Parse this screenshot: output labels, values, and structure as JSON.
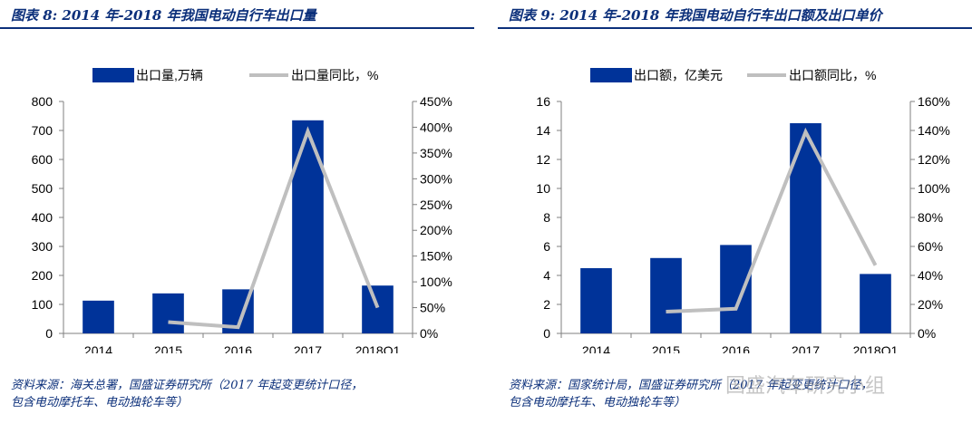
{
  "charts": [
    {
      "title": "图表 8: 2014 年-2018 年我国电动自行车出口量",
      "source": [
        "资料来源：海关总署，国盛证券研究所（2017 年起变更统计口径，",
        "包含电动摩托车、电动独轮车等）"
      ]
    },
    {
      "title": "图表 9: 2014 年-2018 年我国电动自行车出口额及出口单价",
      "source": [
        "资料来源：国家统计局，国盛证券研究所（2017 年起变更统计口径，",
        "包含电动摩托车、电动独轮车等）"
      ]
    }
  ],
  "watermark": "国盛汽车研究小组",
  "colors": {
    "bar": "#003399",
    "line": "#bfbfbf",
    "title": "#0b2f7a"
  },
  "chart_data": [
    {
      "type": "bar",
      "categories": [
        "2014",
        "2015",
        "2016",
        "2017",
        "2018Q1"
      ],
      "series": [
        {
          "name": "出口量,万辆",
          "type": "bar",
          "axis": "left",
          "values": [
            113,
            138,
            152,
            735,
            165
          ]
        },
        {
          "name": "出口量同比，%",
          "type": "line",
          "axis": "right",
          "values": [
            null,
            22,
            12,
            392,
            50
          ]
        }
      ],
      "left_axis": {
        "min": 0,
        "max": 800,
        "ticks": [
          "0",
          "100",
          "200",
          "300",
          "400",
          "500",
          "600",
          "700",
          "800"
        ]
      },
      "right_axis": {
        "min": 0,
        "max": 450,
        "ticks": [
          "0%",
          "50%",
          "100%",
          "150%",
          "200%",
          "250%",
          "300%",
          "350%",
          "400%",
          "450%"
        ]
      },
      "legend_position": "top"
    },
    {
      "type": "bar",
      "categories": [
        "2014",
        "2015",
        "2016",
        "2017",
        "2018Q1"
      ],
      "series": [
        {
          "name": "出口额，亿美元",
          "type": "bar",
          "axis": "left",
          "values": [
            4.5,
            5.2,
            6.1,
            14.5,
            4.1
          ]
        },
        {
          "name": "出口额同比，%",
          "type": "line",
          "axis": "right",
          "values": [
            null,
            15,
            17,
            139,
            47
          ]
        }
      ],
      "left_axis": {
        "min": 0,
        "max": 16,
        "ticks": [
          "0",
          "2",
          "4",
          "6",
          "8",
          "10",
          "12",
          "14",
          "16"
        ]
      },
      "right_axis": {
        "min": 0,
        "max": 160,
        "ticks": [
          "0%",
          "20%",
          "40%",
          "60%",
          "80%",
          "100%",
          "120%",
          "140%",
          "160%"
        ]
      },
      "legend_position": "top"
    }
  ]
}
